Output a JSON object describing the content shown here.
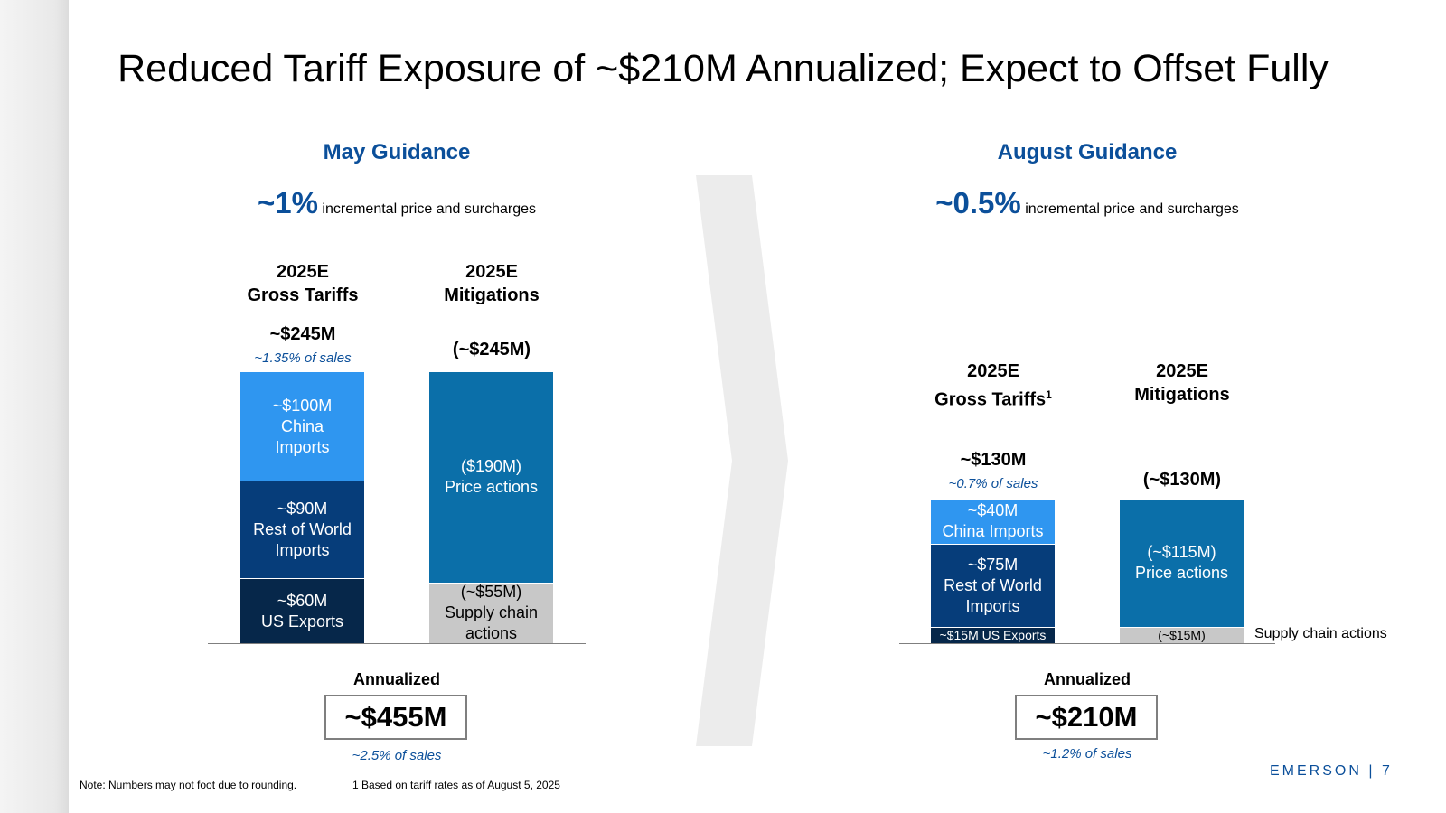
{
  "title": "Reduced Tariff Exposure of ~$210M Annualized; Expect to Offset Fully",
  "colors": {
    "heading_blue": "#0b4f9a",
    "china": "#2f96f0",
    "rest_of_world": "#063d7a",
    "us_exports": "#06274a",
    "price_actions": "#0b6fa9",
    "supply_chain": "#c8c8c8"
  },
  "chart_data": [
    {
      "type": "bar",
      "stacked": true,
      "title": "May Guidance",
      "headline_value": "~1%",
      "headline_text": "incremental price and surcharges",
      "unit": "$M",
      "columns": [
        {
          "label_line1": "2025E",
          "label_line2": "Gross Tariffs",
          "label_sup": "",
          "total_label": "~$245M",
          "sub_label": "~1.35% of sales",
          "total": 245,
          "segments": [
            {
              "name": "US Exports",
              "value": 60,
              "line1": "~$60M",
              "line2": "US Exports",
              "line3": "",
              "color_key": "us_exports"
            },
            {
              "name": "Rest of World Imports",
              "value": 90,
              "line1": "~$90M",
              "line2": "Rest of World",
              "line3": "Imports",
              "color_key": "rest_of_world"
            },
            {
              "name": "China Imports",
              "value": 100,
              "line1": "~$100M",
              "line2": "China",
              "line3": "Imports",
              "color_key": "china"
            }
          ]
        },
        {
          "label_line1": "2025E",
          "label_line2": "Mitigations",
          "label_sup": "",
          "total_label": "(~$245M)",
          "sub_label": "",
          "total": 245,
          "segments": [
            {
              "name": "Supply chain actions",
              "value": 55,
              "line1": "(~$55M)",
              "line2": "Supply chain",
              "line3": "actions",
              "color_key": "supply_chain"
            },
            {
              "name": "Price actions",
              "value": 190,
              "line1": "($190M)",
              "line2": "Price actions",
              "line3": "",
              "color_key": "price_actions"
            }
          ]
        }
      ],
      "annualized_label": "Annualized",
      "annualized_value": "~$455M",
      "annualized_sub": "~2.5% of sales"
    },
    {
      "type": "bar",
      "stacked": true,
      "title": "August Guidance",
      "headline_value": "~0.5%",
      "headline_text": "incremental price and surcharges",
      "unit": "$M",
      "columns": [
        {
          "label_line1": "2025E",
          "label_line2": "Gross Tariffs",
          "label_sup": "1",
          "total_label": "~$130M",
          "sub_label": "~0.7% of sales",
          "total": 130,
          "segments": [
            {
              "name": "US Exports",
              "value": 15,
              "line1": "~$15M US Exports",
              "line2": "",
              "line3": "",
              "color_key": "us_exports"
            },
            {
              "name": "Rest of World Imports",
              "value": 75,
              "line1": "~$75M",
              "line2": "Rest of World",
              "line3": "Imports",
              "color_key": "rest_of_world"
            },
            {
              "name": "China Imports",
              "value": 40,
              "line1": "~$40M",
              "line2": "China Imports",
              "line3": "",
              "color_key": "china"
            }
          ]
        },
        {
          "label_line1": "2025E",
          "label_line2": "Mitigations",
          "label_sup": "",
          "total_label": "(~$130M)",
          "sub_label": "",
          "total": 130,
          "segments": [
            {
              "name": "Supply chain actions",
              "value": 15,
              "line1": "(~$15M)",
              "line2": "",
              "line3": "",
              "color_key": "supply_chain"
            },
            {
              "name": "Price actions",
              "value": 115,
              "line1": "(~$115M)",
              "line2": "Price actions",
              "line3": "",
              "color_key": "price_actions"
            }
          ]
        }
      ],
      "side_note": "Supply chain actions",
      "annualized_label": "Annualized",
      "annualized_value": "~$210M",
      "annualized_sub": "~1.2% of sales"
    }
  ],
  "footer": {
    "note": "Note: Numbers may not foot due to rounding.",
    "footnote_1": "1 Based on tariff rates as of August 5, 2025",
    "brand": "EMERSON | 7"
  }
}
